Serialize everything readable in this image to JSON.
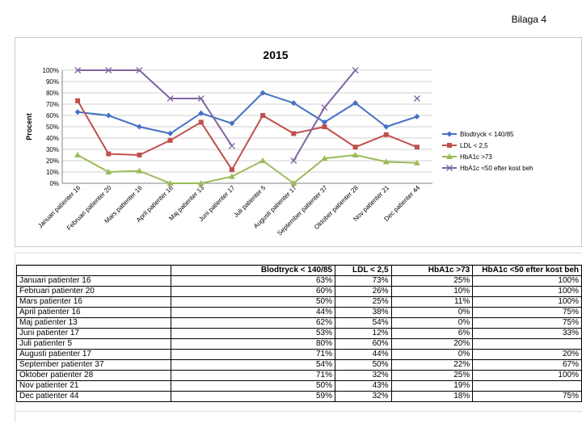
{
  "page_label": "Bilaga 4",
  "chart_data": {
    "type": "line",
    "title": "2015",
    "ylabel": "Procent",
    "xlabel": "",
    "ylim": [
      0,
      100
    ],
    "yticks": [
      "0%",
      "10%",
      "20%",
      "30%",
      "40%",
      "50%",
      "60%",
      "70%",
      "80%",
      "90%",
      "100%"
    ],
    "categories": [
      "Januari patienter 16",
      "Februari patienter 20",
      "Mars patienter 16",
      "April patienter 16",
      "Maj patienter 13",
      "Juni patienter 17",
      "Juli patienter 5",
      "Augusti patienter 17",
      "September patienter 37",
      "Oktober patienter 28",
      "Nov patienter 21",
      "Dec patienter 44"
    ],
    "legend_position": "right",
    "series": [
      {
        "name": "Blodtryck < 140/85",
        "color": "#4472c4",
        "marker": "diamond",
        "values": [
          63,
          60,
          50,
          44,
          62,
          53,
          80,
          71,
          54,
          71,
          50,
          59
        ]
      },
      {
        "name": "LDL < 2,5",
        "color": "#c0504d",
        "marker": "square",
        "values": [
          73,
          26,
          25,
          38,
          54,
          12,
          60,
          44,
          50,
          32,
          43,
          32
        ]
      },
      {
        "name": "HbA1c >73",
        "color": "#9bbb59",
        "marker": "triangle",
        "values": [
          25,
          10,
          11,
          0,
          0,
          6,
          20,
          0,
          22,
          25,
          19,
          18
        ]
      },
      {
        "name": "HbA1c <50 efter kost beh",
        "color": "#8064a2",
        "marker": "x",
        "values": [
          100,
          100,
          100,
          75,
          75,
          33,
          null,
          20,
          67,
          100,
          null,
          75
        ]
      }
    ]
  },
  "table": {
    "headers": [
      "",
      "Blodtryck < 140/85",
      "LDL < 2,5",
      "HbA1c >73",
      "HbA1c <50 efter kost beh"
    ],
    "rows": [
      [
        "Januari patienter 16",
        "63%",
        "73%",
        "25%",
        "100%"
      ],
      [
        "Februari patienter 20",
        "60%",
        "26%",
        "10%",
        "100%"
      ],
      [
        "Mars patienter 16",
        "50%",
        "25%",
        "11%",
        "100%"
      ],
      [
        "April patienter 16",
        "44%",
        "38%",
        "0%",
        "75%"
      ],
      [
        "Maj patienter 13",
        "62%",
        "54%",
        "0%",
        "75%"
      ],
      [
        "Juni patienter 17",
        "53%",
        "12%",
        "6%",
        "33%"
      ],
      [
        "Juli patienter 5",
        "80%",
        "60%",
        "20%",
        ""
      ],
      [
        "Augusti patienter 17",
        "71%",
        "44%",
        "0%",
        "20%"
      ],
      [
        "September patienter 37",
        "54%",
        "50%",
        "22%",
        "67%"
      ],
      [
        "Oktober patienter 28",
        "71%",
        "32%",
        "25%",
        "100%"
      ],
      [
        "Nov patienter 21",
        "50%",
        "43%",
        "19%",
        ""
      ],
      [
        "Dec patienter 44",
        "59%",
        "32%",
        "18%",
        "75%"
      ]
    ]
  }
}
